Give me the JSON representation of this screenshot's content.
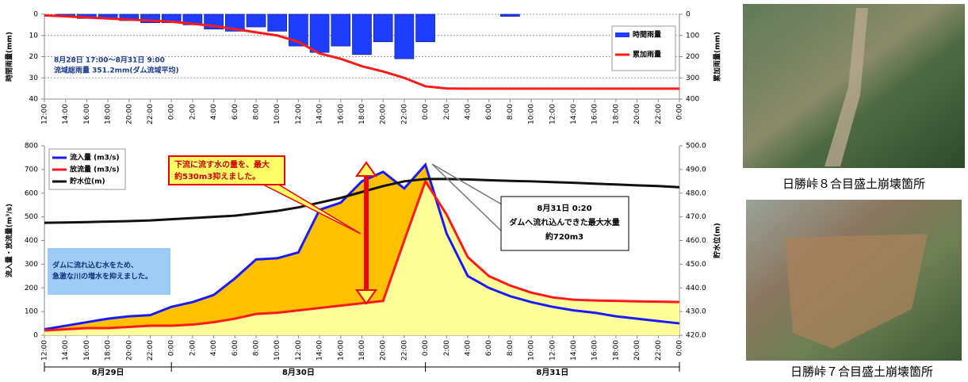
{
  "chart_data": [
    {
      "type": "bar",
      "ylabel": "時間雨量(mm)",
      "y2label": "累加雨量(mm)",
      "categories": [
        "12:00",
        "14:00",
        "16:00",
        "18:00",
        "20:00",
        "22:00",
        "0:00",
        "2:00",
        "4:00",
        "6:00",
        "8:00",
        "10:00",
        "12:00",
        "14:00",
        "16:00",
        "18:00",
        "20:00",
        "22:00",
        "0:00",
        "2:00",
        "4:00",
        "6:00",
        "8:00",
        "10:00",
        "12:00",
        "14:00",
        "16:00",
        "18:00",
        "20:00",
        "22:00",
        "0:00"
      ],
      "series": [
        {
          "name": "時間雨量",
          "type": "bar",
          "color": "#1f3dff",
          "values": [
            0,
            1,
            2,
            2,
            3,
            4,
            4,
            5,
            7,
            8,
            6,
            8,
            15,
            18,
            15,
            19,
            13,
            21,
            13,
            0,
            0,
            0,
            1,
            0,
            0,
            0,
            0,
            0,
            0,
            0,
            0
          ]
        },
        {
          "name": "累加雨量",
          "type": "line",
          "axis": "y2",
          "color": "#ff1a1a",
          "values": [
            5,
            10,
            15,
            20,
            25,
            30,
            35,
            45,
            55,
            70,
            85,
            100,
            130,
            185,
            210,
            245,
            270,
            300,
            340,
            350,
            351,
            351,
            351,
            351,
            351,
            351,
            351,
            351,
            351,
            351,
            351
          ]
        }
      ],
      "ylim": [
        0,
        40
      ],
      "yticks": [
        0,
        10,
        20,
        30,
        40
      ],
      "y2lim": [
        0,
        400
      ],
      "y2ticks": [
        0,
        100,
        200,
        300,
        400
      ],
      "y_inverted": true,
      "grid": true,
      "legend": "upper right",
      "annotations": [
        "8月28日 17:00～8月31日 9:00",
        "流域総雨量 351.2mm(ダム流域平均)"
      ]
    },
    {
      "type": "area",
      "ylabel": "流入量・放流量(m³/s)",
      "y2label": "貯水位(m)",
      "categories": [
        "12:00",
        "14:00",
        "16:00",
        "18:00",
        "20:00",
        "22:00",
        "0:00",
        "2:00",
        "4:00",
        "6:00",
        "8:00",
        "10:00",
        "12:00",
        "14:00",
        "16:00",
        "18:00",
        "20:00",
        "22:00",
        "0:00",
        "2:00",
        "4:00",
        "6:00",
        "8:00",
        "10:00",
        "12:00",
        "14:00",
        "16:00",
        "18:00",
        "20:00",
        "22:00",
        "0:00"
      ],
      "series": [
        {
          "name": "流入量 (m3/s)",
          "color": "#1a1aff",
          "fill": "#ffc000",
          "values": [
            25,
            40,
            55,
            70,
            80,
            85,
            120,
            140,
            170,
            240,
            320,
            325,
            350,
            530,
            560,
            650,
            690,
            620,
            720,
            430,
            250,
            200,
            165,
            140,
            120,
            105,
            95,
            80,
            70,
            60,
            50
          ]
        },
        {
          "name": "放流量 (m3/s)",
          "color": "#ff1a1a",
          "fill": "#ffff99",
          "values": [
            20,
            25,
            30,
            30,
            35,
            40,
            40,
            45,
            55,
            70,
            90,
            95,
            105,
            115,
            125,
            135,
            145,
            400,
            650,
            510,
            330,
            250,
            210,
            180,
            160,
            150,
            147,
            145,
            143,
            142,
            140
          ]
        },
        {
          "name": "貯水位(m)",
          "axis": "y2",
          "color": "#111111",
          "values": [
            467.5,
            467.6,
            467.8,
            468,
            468.2,
            468.5,
            469,
            469.5,
            470,
            470.5,
            471.5,
            472.5,
            474,
            476,
            478,
            480.5,
            483,
            485,
            486,
            486,
            485.8,
            485.5,
            485.2,
            485,
            484.7,
            484.4,
            484,
            483.7,
            483.3,
            483,
            482.5
          ]
        }
      ],
      "ylim": [
        0,
        800
      ],
      "yticks": [
        0,
        100,
        200,
        300,
        400,
        500,
        600,
        700,
        800
      ],
      "y2lim": [
        420,
        500
      ],
      "y2ticks": [
        {
          "value": 420,
          "label": "420.0"
        },
        {
          "value": 430,
          "label": "430.0"
        },
        {
          "value": 440,
          "label": "440.0"
        },
        {
          "value": 450,
          "label": "450.0"
        },
        {
          "value": 460,
          "label": "460.0"
        },
        {
          "value": 470,
          "label": "470.0"
        },
        {
          "value": 480,
          "label": "480.0"
        },
        {
          "value": 490,
          "label": "490.0"
        },
        {
          "value": 500,
          "label": "500.0"
        }
      ],
      "grid": false,
      "legend": "upper left",
      "date_labels": [
        "8月29日",
        "8月30日",
        "8月31日"
      ],
      "annotations": [
        {
          "lines": [
            "下流に流す水の量を、最大",
            "約530m3抑えました。"
          ]
        },
        {
          "lines": [
            "ダムに流れ込む水をため、",
            "急激な川の増水を抑えました。"
          ]
        },
        {
          "lines": [
            "8月31日 0:20",
            "ダムへ流れ込んできた最大水量",
            "約720m3"
          ]
        }
      ]
    }
  ],
  "photos": [
    {
      "caption": "日勝峠８合目盛土崩壊箇所"
    },
    {
      "caption": "日勝峠７合目盛土崩壊箇所"
    }
  ]
}
